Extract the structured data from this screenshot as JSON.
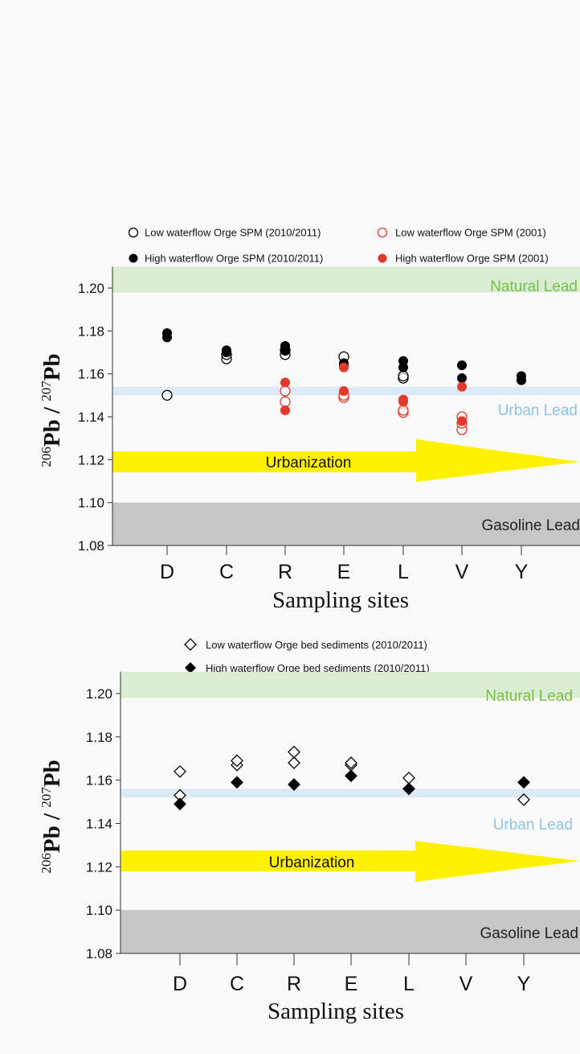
{
  "chart_data": [
    {
      "type": "scatter",
      "ylabel": "206Pb / 207Pb",
      "ylabel_parts": {
        "sup1": "206",
        "base1": "Pb / ",
        "sup2": "207",
        "base2": "Pb"
      },
      "xlabel": "Sampling sites",
      "ylim": [
        1.08,
        1.21
      ],
      "yticks": [
        1.08,
        1.1,
        1.12,
        1.14,
        1.16,
        1.18,
        1.2
      ],
      "yticks_text": [
        "1.08",
        "1.10",
        "1.12",
        "1.14",
        "1.16",
        "1.18",
        "1.20"
      ],
      "categories": [
        "D",
        "C",
        "R",
        "E",
        "L",
        "V",
        "Y"
      ],
      "bands": {
        "natural": {
          "label": "Natural Lead",
          "range": [
            1.198,
            1.21
          ],
          "color": "#d9edd2",
          "text_color": "#78be43"
        },
        "urban": {
          "label": "Urban Lead",
          "range": [
            1.15,
            1.154
          ],
          "color": "#dce9f6",
          "text_color": "#8cc4e6"
        },
        "gasoline": {
          "label": "Gasoline Lead",
          "range": [
            1.08,
            1.1
          ],
          "color": "#c6c6c6",
          "text_color": "#222222"
        }
      },
      "arrow": {
        "label": "Urbanization",
        "color": "#fff200",
        "y": 1.12
      },
      "legend_placement": "top",
      "series": [
        {
          "name": "Low waterflow Orge SPM (2010/2011)",
          "marker": "circle-open",
          "color": "#000000",
          "points": [
            [
              "D",
              1.15
            ],
            [
              "C",
              1.167
            ],
            [
              "C",
              1.169
            ],
            [
              "R",
              1.169
            ],
            [
              "R",
              1.171
            ],
            [
              "E",
              1.168
            ],
            [
              "L",
              1.158
            ],
            [
              "L",
              1.159
            ]
          ]
        },
        {
          "name": "High waterflow Orge SPM (2010/2011)",
          "marker": "circle-filled",
          "color": "#000000",
          "points": [
            [
              "D",
              1.177
            ],
            [
              "D",
              1.179
            ],
            [
              "C",
              1.17
            ],
            [
              "C",
              1.171
            ],
            [
              "R",
              1.171
            ],
            [
              "R",
              1.173
            ],
            [
              "E",
              1.164
            ],
            [
              "E",
              1.165
            ],
            [
              "L",
              1.163
            ],
            [
              "L",
              1.166
            ],
            [
              "V",
              1.158
            ],
            [
              "V",
              1.164
            ],
            [
              "Y",
              1.157
            ],
            [
              "Y",
              1.159
            ]
          ]
        },
        {
          "name": "Low waterflow Orge SPM (2001)",
          "marker": "circle-open",
          "color": "#e2382b",
          "points": [
            [
              "R",
              1.147
            ],
            [
              "R",
              1.152
            ],
            [
              "E",
              1.149
            ],
            [
              "E",
              1.15
            ],
            [
              "L",
              1.142
            ],
            [
              "L",
              1.143
            ],
            [
              "V",
              1.134
            ],
            [
              "V",
              1.137
            ],
            [
              "V",
              1.14
            ]
          ]
        },
        {
          "name": "High waterflow Orge SPM (2001)",
          "marker": "circle-filled",
          "color": "#e2382b",
          "points": [
            [
              "R",
              1.143
            ],
            [
              "R",
              1.156
            ],
            [
              "E",
              1.152
            ],
            [
              "E",
              1.163
            ],
            [
              "L",
              1.147
            ],
            [
              "L",
              1.148
            ],
            [
              "V",
              1.138
            ],
            [
              "V",
              1.154
            ]
          ]
        }
      ]
    },
    {
      "type": "scatter",
      "ylabel": "206Pb / 207Pb",
      "ylabel_parts": {
        "sup1": "206",
        "base1": "Pb / ",
        "sup2": "207",
        "base2": "Pb"
      },
      "xlabel": "Sampling sites",
      "ylim": [
        1.08,
        1.21
      ],
      "yticks": [
        1.08,
        1.1,
        1.12,
        1.14,
        1.16,
        1.18,
        1.2
      ],
      "yticks_text": [
        "1.08",
        "1.10",
        "1.12",
        "1.14",
        "1.16",
        "1.18",
        "1.20"
      ],
      "categories": [
        "D",
        "C",
        "R",
        "E",
        "L",
        "V",
        "Y"
      ],
      "bands": {
        "natural": {
          "label": "Natural Lead",
          "range": [
            1.198,
            1.21
          ],
          "color": "#d9edd2",
          "text_color": "#78be43"
        },
        "urban": {
          "label": "Urban Lead",
          "range": [
            1.152,
            1.156
          ],
          "color": "#dce9f6",
          "text_color": "#8cc4e6"
        },
        "gasoline": {
          "label": "Gasoline Lead",
          "range": [
            1.08,
            1.1
          ],
          "color": "#c6c6c6",
          "text_color": "#222222"
        }
      },
      "arrow": {
        "label": "Urbanization",
        "color": "#fff200",
        "y": 1.12
      },
      "legend_placement": "top",
      "series": [
        {
          "name": "Low waterflow Orge bed sediments (2010/2011)",
          "marker": "diamond-open",
          "color": "#000000",
          "points": [
            [
              "D",
              1.153
            ],
            [
              "D",
              1.164
            ],
            [
              "C",
              1.167
            ],
            [
              "C",
              1.169
            ],
            [
              "R",
              1.168
            ],
            [
              "R",
              1.173
            ],
            [
              "E",
              1.167
            ],
            [
              "E",
              1.168
            ],
            [
              "L",
              1.161
            ],
            [
              "Y",
              1.151
            ]
          ]
        },
        {
          "name": "High waterflow Orge bed sediments (2010/2011)",
          "marker": "diamond-filled",
          "color": "#000000",
          "points": [
            [
              "D",
              1.149
            ],
            [
              "C",
              1.159
            ],
            [
              "R",
              1.158
            ],
            [
              "E",
              1.162
            ],
            [
              "L",
              1.156
            ],
            [
              "Y",
              1.159
            ]
          ]
        }
      ]
    }
  ]
}
